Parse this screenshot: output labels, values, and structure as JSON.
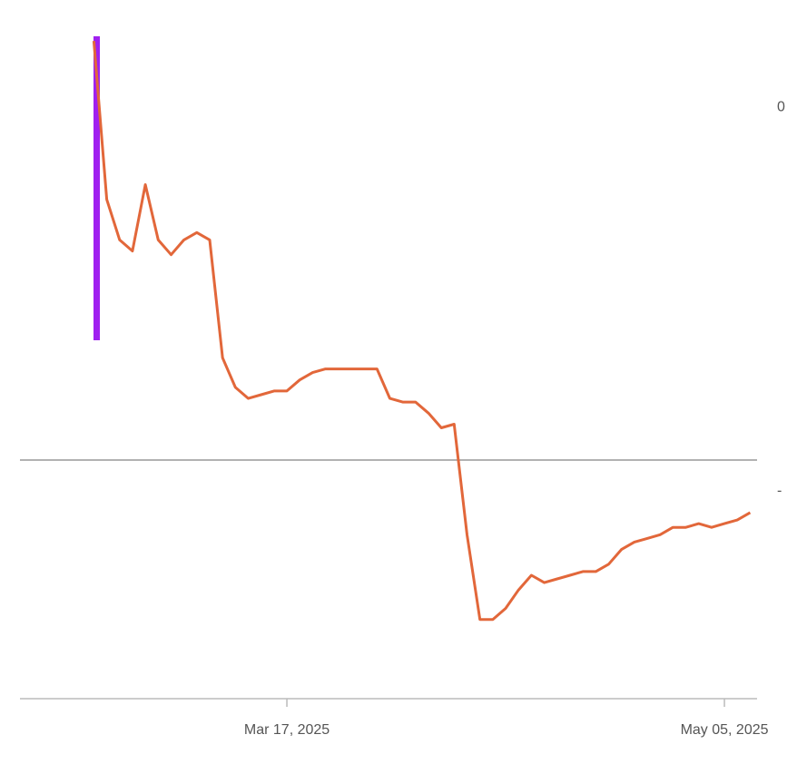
{
  "chart_data": {
    "type": "line",
    "categories": [
      null,
      null,
      null,
      null,
      null,
      null,
      null,
      null,
      null,
      null,
      null,
      null,
      null,
      null,
      null,
      "Mar 17, 2025",
      null,
      null,
      null,
      null,
      null,
      null,
      null,
      null,
      null,
      null,
      null,
      null,
      null,
      null,
      null,
      null,
      null,
      null,
      null,
      null,
      null,
      null,
      null,
      null,
      null,
      null,
      null,
      null,
      null,
      null,
      null,
      null,
      null,
      "May 05, 2025",
      null,
      null
    ],
    "series": [
      {
        "color": "#e2673a",
        "values": [
          1.8,
          -2.5,
          -3.6,
          -3.9,
          -2.1,
          -3.6,
          -4.0,
          -3.6,
          -3.4,
          -3.6,
          -6.8,
          -7.6,
          -7.9,
          -7.8,
          -7.7,
          -7.7,
          -7.4,
          -7.2,
          -7.1,
          -7.1,
          -7.1,
          -7.1,
          -7.1,
          -7.9,
          -8.0,
          -8.0,
          -8.3,
          -8.7,
          -8.6,
          -11.6,
          -13.9,
          -13.9,
          -13.6,
          -13.1,
          -12.7,
          -12.9,
          -12.8,
          -12.7,
          -12.6,
          -12.6,
          -12.4,
          -12.0,
          -11.8,
          -11.7,
          -11.6,
          -11.4,
          -11.4,
          -11.3,
          -11.4,
          -11.3,
          -11.2,
          -11.0
        ]
      }
    ],
    "ylim": [
      -16,
      2
    ],
    "yticks": [
      0,
      {
        "value": -10,
        "label": "-"
      }
    ]
  }
}
